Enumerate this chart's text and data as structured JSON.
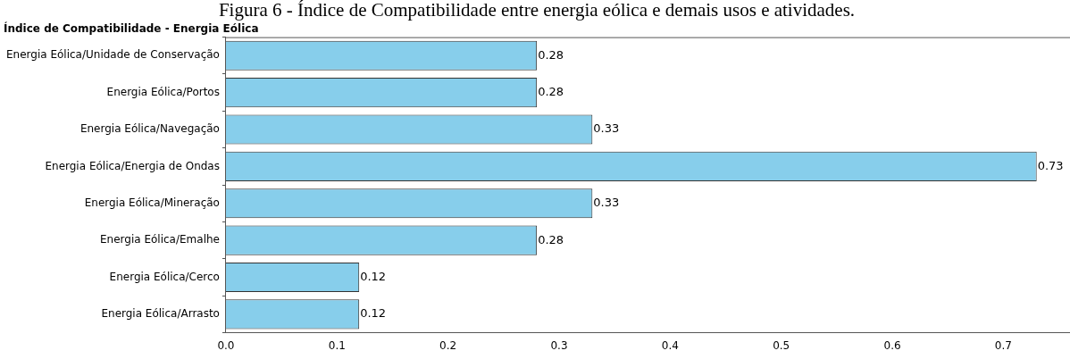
{
  "chart_data": {
    "type": "bar",
    "orientation": "horizontal",
    "title": "Figura 6 - Índice de Compatibilidade entre energia eólica e demais usos e atividades.",
    "subtitle": "Índice de Compatibilidade - Energia Eólica",
    "categories": [
      "Energia Eólica/Unidade de Conservação",
      "Energia Eólica/Portos",
      "Energia Eólica/Navegação",
      "Energia Eólica/Energia de Ondas",
      "Energia Eólica/Mineração",
      "Energia Eólica/Emalhe",
      "Energia Eólica/Cerco",
      "Energia Eólica/Arrasto"
    ],
    "values": [
      0.28,
      0.28,
      0.33,
      0.73,
      0.33,
      0.28,
      0.12,
      0.12
    ],
    "color": "#87ceeb",
    "data_labels": true,
    "grid": false,
    "legend": false,
    "xlim": [
      0,
      0.76
    ],
    "xticks": [
      {
        "value": 0,
        "label": "0.0"
      },
      0.1,
      0.2,
      0.3,
      0.4,
      0.5,
      0.6,
      0.7
    ]
  }
}
